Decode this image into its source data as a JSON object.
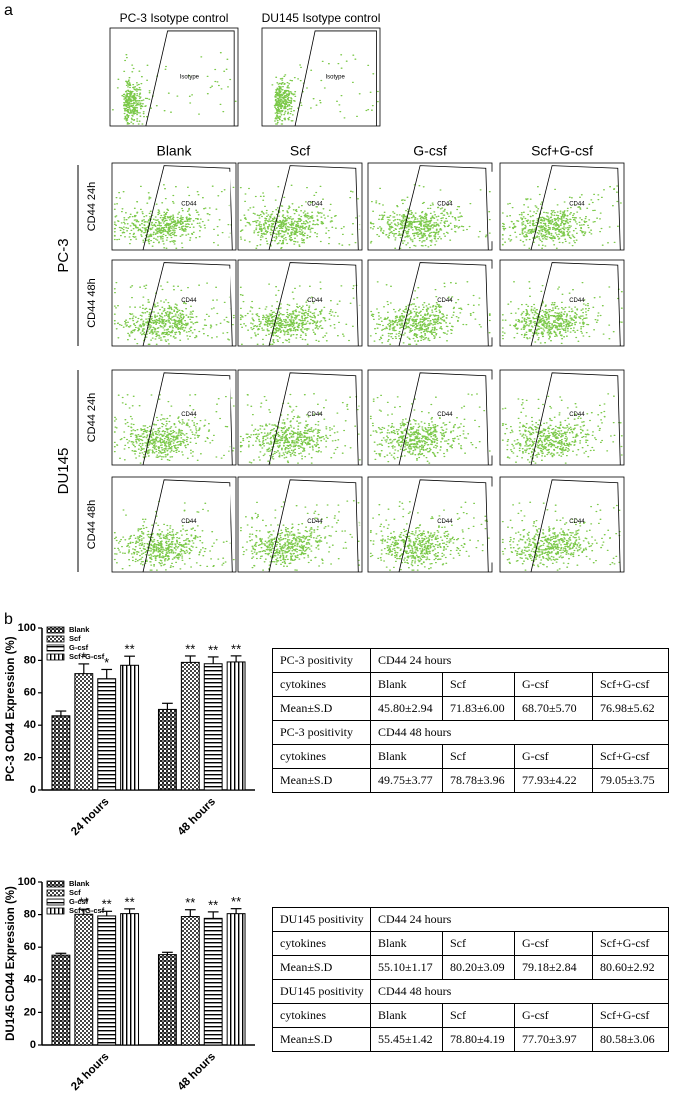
{
  "panel_labels": [
    "a",
    "b"
  ],
  "flow": {
    "isotype": [
      {
        "title": "PC-3 Isotype control",
        "gate": "Isotype"
      },
      {
        "title": "DU145 Isotype control",
        "gate": "Isotype"
      }
    ],
    "columns": [
      "Blank",
      "Scf",
      "G-csf",
      "Scf+G-csf"
    ],
    "groups": [
      {
        "name": "PC-3",
        "rows": [
          {
            "label": "CD44 24h",
            "gates": [
              "CD44",
              "CD44",
              "CD44",
              "CD44"
            ]
          },
          {
            "label": "CD44 48h",
            "gates": [
              "CD44",
              "CD44",
              "CD44",
              "CD44"
            ]
          }
        ]
      },
      {
        "name": "DU145",
        "rows": [
          {
            "label": "CD44 24h",
            "gates": [
              "CD44",
              "CD44",
              "CD44",
              "CD44"
            ]
          },
          {
            "label": "CD44 48h",
            "gates": [
              "CD44",
              "CD44",
              "CD44",
              "CD44"
            ]
          }
        ]
      }
    ]
  },
  "chart_data": [
    {
      "type": "bar",
      "y_label": "PC-3 CD44 Expression (%)",
      "categories": [
        "24 hours",
        "48 hours"
      ],
      "series": [
        {
          "name": "Blank",
          "color": "#000000",
          "pattern": "checker",
          "values": [
            45.8,
            49.75
          ],
          "errors": [
            2.94,
            3.77
          ],
          "sig": [
            null,
            null
          ]
        },
        {
          "name": "Scf",
          "color": "#000000",
          "pattern": "dots",
          "values": [
            71.83,
            78.78
          ],
          "errors": [
            6.0,
            3.96
          ],
          "sig": [
            "*",
            "**"
          ]
        },
        {
          "name": "G-csf",
          "color": "#000000",
          "pattern": "hlines",
          "values": [
            68.7,
            77.93
          ],
          "errors": [
            5.7,
            4.22
          ],
          "sig": [
            "*",
            "**"
          ]
        },
        {
          "name": "Scf+G-csf",
          "color": "#000000",
          "pattern": "vlines",
          "values": [
            76.98,
            79.05
          ],
          "errors": [
            5.62,
            3.75
          ],
          "sig": [
            "**",
            "**"
          ]
        }
      ],
      "ylim": [
        0,
        100
      ],
      "yticks": [
        0,
        20,
        40,
        60,
        80,
        100
      ]
    },
    {
      "type": "bar",
      "y_label": "DU145 CD44 Expression (%)",
      "categories": [
        "24 hours",
        "48 hours"
      ],
      "series": [
        {
          "name": "Blank",
          "color": "#000000",
          "pattern": "checker",
          "values": [
            55.1,
            55.45
          ],
          "errors": [
            1.17,
            1.42
          ],
          "sig": [
            null,
            null
          ]
        },
        {
          "name": "Scf",
          "color": "#000000",
          "pattern": "dots",
          "values": [
            80.2,
            78.8
          ],
          "errors": [
            3.09,
            4.19
          ],
          "sig": [
            "**",
            "**"
          ]
        },
        {
          "name": "G-csf",
          "color": "#000000",
          "pattern": "hlines",
          "values": [
            79.18,
            77.7
          ],
          "errors": [
            2.84,
            3.97
          ],
          "sig": [
            "**",
            "**"
          ]
        },
        {
          "name": "Scf+G-csf",
          "color": "#000000",
          "pattern": "vlines",
          "values": [
            80.6,
            80.58
          ],
          "errors": [
            2.92,
            3.06
          ],
          "sig": [
            "**",
            "**"
          ]
        }
      ],
      "ylim": [
        0,
        100
      ],
      "yticks": [
        0,
        20,
        40,
        60,
        80,
        100
      ]
    }
  ],
  "tables": [
    {
      "rows": [
        [
          "PC-3 positivity",
          "CD44 24 hours"
        ],
        [
          "cytokines",
          "Blank",
          "Scf",
          "G-csf",
          "Scf+G-csf"
        ],
        [
          "Mean±S.D",
          "45.80±2.94",
          "71.83±6.00",
          "68.70±5.70",
          "76.98±5.62"
        ],
        [
          "PC-3 positivity",
          "CD44 48 hours"
        ],
        [
          "cytokines",
          "Blank",
          "Scf",
          "G-csf",
          "Scf+G-csf"
        ],
        [
          "Mean±S.D",
          "49.75±3.77",
          "78.78±3.96",
          "77.93±4.22",
          "79.05±3.75"
        ]
      ]
    },
    {
      "rows": [
        [
          "DU145 positivity",
          "CD44 24 hours"
        ],
        [
          "cytokines",
          "Blank",
          "Scf",
          "G-csf",
          "Scf+G-csf"
        ],
        [
          "Mean±S.D",
          "55.10±1.17",
          "80.20±3.09",
          "79.18±2.84",
          "80.60±2.92"
        ],
        [
          "DU145 positivity",
          "CD44 48 hours"
        ],
        [
          "cytokines",
          "Blank",
          "Scf",
          "G-csf",
          "Scf+G-csf"
        ],
        [
          "Mean±S.D",
          "55.45±1.42",
          "78.80±4.19",
          "77.70±3.97",
          "80.58±3.06"
        ]
      ]
    }
  ]
}
